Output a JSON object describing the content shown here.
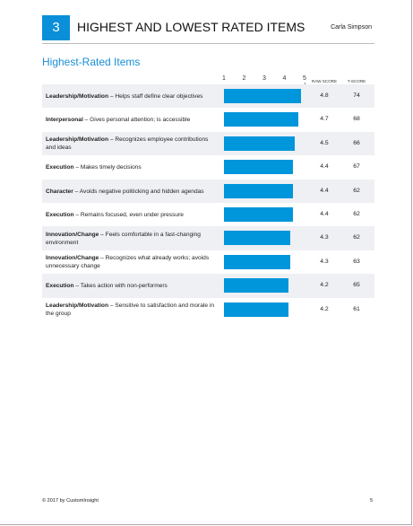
{
  "header": {
    "number": "3",
    "title": "HIGHEST AND LOWEST RATED ITEMS",
    "name": "Carla Simpson"
  },
  "section_title": "Highest-Rated Items",
  "scale": {
    "range": [
      1,
      5
    ],
    "ticks": [
      1,
      2,
      3,
      4,
      5
    ]
  },
  "columns": {
    "raw_score": "RAW SCORE",
    "t_score": "T-SCORE"
  },
  "items": [
    {
      "category": "Leadership/Motivation",
      "text": " – Helps staff define clear objectives",
      "raw_score": 4.8,
      "t_score": 74
    },
    {
      "category": "Interpersonal",
      "text": " – Gives personal attention; is accessible",
      "raw_score": 4.7,
      "t_score": 68
    },
    {
      "category": "Leadership/Motivation",
      "text": " – Recognizes employee contributions and ideas",
      "raw_score": 4.5,
      "t_score": 66
    },
    {
      "category": "Execution",
      "text": " – Makes timely decisions",
      "raw_score": 4.4,
      "t_score": 67
    },
    {
      "category": "Character",
      "text": " – Avoids negative politicking and hidden agendas",
      "raw_score": 4.4,
      "t_score": 62
    },
    {
      "category": "Execution",
      "text": " – Remains focused, even under pressure",
      "raw_score": 4.4,
      "t_score": 62
    },
    {
      "category": "Innovation/Change",
      "text": " – Feels comfortable in a fast-changing environment",
      "raw_score": 4.3,
      "t_score": 62
    },
    {
      "category": "Innovation/Change",
      "text": " – Recognizes what already works; avoids unnecessary change",
      "raw_score": 4.3,
      "t_score": 63
    },
    {
      "category": "Execution",
      "text": " – Takes action with non-performers",
      "raw_score": 4.2,
      "t_score": 65
    },
    {
      "category": "Leadership/Motivation",
      "text": " – Sensitive to satisfaction and morale in the group",
      "raw_score": 4.2,
      "t_score": 61
    }
  ],
  "footer": {
    "copyright": "© 2017 by CustomInsight",
    "page": "5"
  }
}
